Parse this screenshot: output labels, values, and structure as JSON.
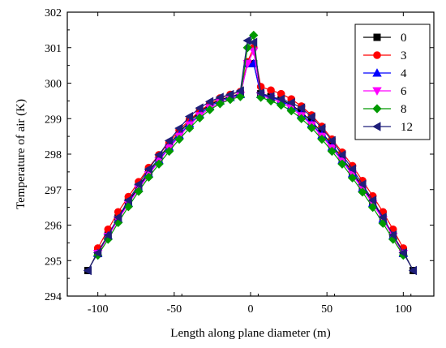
{
  "chart_data": {
    "type": "line",
    "title": "",
    "xlabel": "Length along plane diameter (m)",
    "ylabel": "Temperature of air (K)",
    "xlim": [
      -120,
      120
    ],
    "ylim": [
      294,
      302
    ],
    "xticks": [
      -100,
      -50,
      0,
      50,
      100
    ],
    "yticks": [
      294,
      295,
      296,
      297,
      298,
      299,
      300,
      301,
      302
    ],
    "grid": false,
    "legend_position": "top-right",
    "series": [
      {
        "name": "0",
        "color": "#000000",
        "marker": "square",
        "x": [
          -106.5,
          -100,
          -93.3,
          -86.7,
          -80,
          -73.3,
          -66.7,
          -60,
          -53.3,
          -46.7,
          -40,
          -33.3,
          -26.7,
          -20,
          -13.3,
          -6.7,
          -2,
          2,
          6.7,
          13.3,
          20,
          26.7,
          33.3,
          40,
          46.7,
          53.3,
          60,
          66.7,
          73.3,
          80,
          86.7,
          93.3,
          100,
          106.5
        ],
        "y": [
          294.72,
          295.25,
          295.72,
          296.2,
          296.66,
          297.08,
          297.5,
          297.89,
          298.26,
          298.6,
          298.92,
          299.18,
          299.39,
          299.53,
          299.62,
          299.7,
          300.55,
          300.55,
          299.7,
          299.62,
          299.53,
          299.39,
          299.18,
          298.92,
          298.6,
          298.26,
          297.89,
          297.5,
          297.08,
          296.66,
          296.2,
          295.72,
          295.25,
          294.72
        ]
      },
      {
        "name": "3",
        "color": "#ff0000",
        "marker": "circle",
        "x": [
          -100,
          -93.3,
          -86.7,
          -80,
          -73.3,
          -66.7,
          -60,
          -53.3,
          -46.7,
          -40,
          -33.3,
          -26.7,
          -20,
          -13.3,
          -6.7,
          -2,
          2,
          6.7,
          13.3,
          20,
          26.7,
          33.3,
          40,
          46.7,
          53.3,
          60,
          66.7,
          73.3,
          80,
          86.7,
          93.3,
          100
        ],
        "y": [
          295.35,
          295.88,
          296.37,
          296.8,
          297.22,
          297.62,
          297.98,
          298.33,
          298.67,
          298.97,
          299.21,
          299.42,
          299.58,
          299.68,
          299.76,
          300.6,
          301.0,
          299.9,
          299.8,
          299.7,
          299.55,
          299.35,
          299.1,
          298.78,
          298.42,
          298.05,
          297.67,
          297.25,
          296.82,
          296.37,
          295.88,
          295.35
        ]
      },
      {
        "name": "4",
        "color": "#0000ff",
        "marker": "triangle-up",
        "x": [
          -100,
          -93.3,
          -86.7,
          -80,
          -73.3,
          -66.7,
          -60,
          -53.3,
          -46.7,
          -40,
          -33.3,
          -26.7,
          -20,
          -13.3,
          -6.7,
          -2,
          2,
          6.7,
          13.3,
          20,
          26.7,
          33.3,
          40,
          46.7,
          53.3,
          60,
          66.7,
          73.3,
          80,
          86.7,
          93.3,
          100
        ],
        "y": [
          295.2,
          295.7,
          296.17,
          296.62,
          297.04,
          297.45,
          297.83,
          298.2,
          298.54,
          298.86,
          299.12,
          299.35,
          299.5,
          299.6,
          299.68,
          300.55,
          300.55,
          299.68,
          299.6,
          299.5,
          299.35,
          299.12,
          298.86,
          298.54,
          298.2,
          297.83,
          297.45,
          297.04,
          296.62,
          296.17,
          295.7,
          295.2
        ]
      },
      {
        "name": "6",
        "color": "#ff00ff",
        "marker": "triangle-down",
        "x": [
          -100,
          -93.3,
          -86.7,
          -80,
          -73.3,
          -66.7,
          -60,
          -53.3,
          -46.7,
          -40,
          -33.3,
          -26.7,
          -20,
          -13.3,
          -6.7,
          -2,
          2,
          6.7,
          13.3,
          20,
          26.7,
          33.3,
          40,
          46.7,
          53.3,
          60,
          66.7,
          73.3,
          80,
          86.7,
          93.3,
          100
        ],
        "y": [
          295.2,
          295.68,
          296.15,
          296.6,
          297.02,
          297.42,
          297.8,
          298.17,
          298.5,
          298.82,
          299.08,
          299.3,
          299.45,
          299.56,
          299.65,
          300.55,
          300.9,
          299.65,
          299.56,
          299.45,
          299.3,
          299.08,
          298.82,
          298.5,
          298.17,
          297.8,
          297.42,
          297.02,
          296.6,
          296.15,
          295.68,
          295.2
        ]
      },
      {
        "name": "8",
        "color": "#009900",
        "marker": "diamond",
        "x": [
          -100,
          -93.3,
          -86.7,
          -80,
          -73.3,
          -66.7,
          -60,
          -53.3,
          -46.7,
          -40,
          -33.3,
          -26.7,
          -20,
          -13.3,
          -6.7,
          -2,
          2,
          6.7,
          13.3,
          20,
          26.7,
          33.3,
          40,
          46.7,
          53.3,
          60,
          66.7,
          73.3,
          80,
          86.7,
          93.3,
          100
        ],
        "y": [
          295.15,
          295.6,
          296.07,
          296.52,
          296.95,
          297.35,
          297.72,
          298.08,
          298.42,
          298.73,
          299.02,
          299.25,
          299.42,
          299.54,
          299.62,
          301.0,
          301.35,
          299.6,
          299.5,
          299.38,
          299.22,
          299.0,
          298.74,
          298.42,
          298.08,
          297.72,
          297.33,
          296.93,
          296.5,
          296.05,
          295.6,
          295.15
        ]
      },
      {
        "name": "12",
        "color": "#1f1f7a",
        "marker": "triangle-left",
        "x": [
          -106.5,
          -100,
          -93.3,
          -86.7,
          -80,
          -73.3,
          -66.7,
          -60,
          -53.3,
          -46.7,
          -40,
          -33.3,
          -26.7,
          -20,
          -13.3,
          -6.7,
          -2,
          2,
          6.7,
          13.3,
          20,
          26.7,
          33.3,
          40,
          46.7,
          53.3,
          60,
          66.7,
          73.3,
          80,
          86.7,
          93.3,
          100,
          106.5
        ],
        "y": [
          294.72,
          295.22,
          295.72,
          296.22,
          296.7,
          297.15,
          297.58,
          297.98,
          298.38,
          298.73,
          299.06,
          299.3,
          299.48,
          299.6,
          299.68,
          299.78,
          301.2,
          301.15,
          299.72,
          299.62,
          299.55,
          299.45,
          299.3,
          299.05,
          298.73,
          298.38,
          297.98,
          297.58,
          297.15,
          296.7,
          296.22,
          295.72,
          295.22,
          294.72
        ]
      }
    ]
  }
}
